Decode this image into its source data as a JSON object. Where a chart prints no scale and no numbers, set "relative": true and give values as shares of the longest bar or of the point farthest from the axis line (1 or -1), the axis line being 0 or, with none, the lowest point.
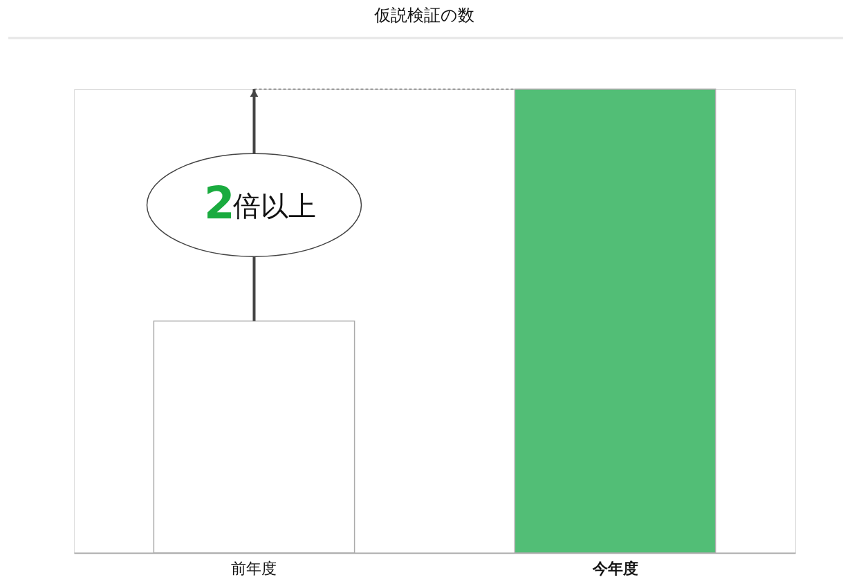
{
  "chart_data": {
    "type": "bar",
    "title": "仮説検証の数",
    "relative": true,
    "categories": [
      "前年度",
      "今年度"
    ],
    "values": [
      0.5,
      1
    ],
    "colors": [
      "#ffffff",
      "#52be76"
    ],
    "annotations": [
      "2倍以上"
    ]
  }
}
